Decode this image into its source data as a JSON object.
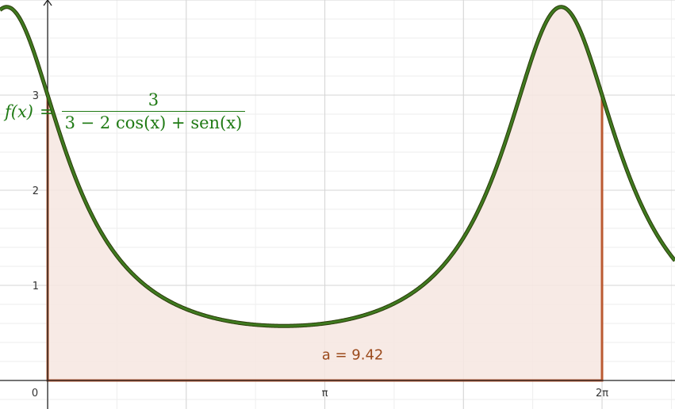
{
  "chart_data": {
    "type": "area",
    "title": "",
    "xlabel": "",
    "ylabel": "",
    "function": {
      "lhs": "f(x)",
      "numerator": "3",
      "denominator": "3 − 2 cos(x) + sen(x)"
    },
    "x_ticks": [
      {
        "value": 0,
        "label": "0"
      },
      {
        "value": 3.14159,
        "label": "π"
      },
      {
        "value": 6.28319,
        "label": "2π"
      }
    ],
    "y_ticks": [
      {
        "value": 1,
        "label": "1"
      },
      {
        "value": 2,
        "label": "2"
      },
      {
        "value": 3,
        "label": "3"
      }
    ],
    "xlim": [
      -0.54,
      7.11
    ],
    "ylim": [
      -0.3,
      4.0
    ],
    "shaded_interval": [
      0,
      6.28319
    ],
    "area_label": "a = 9.42",
    "series": [
      {
        "x": [
          -0.5,
          -0.25,
          0,
          0.25,
          0.5,
          0.75,
          1.0,
          1.25,
          1.5,
          1.75,
          2.0,
          2.25,
          2.5,
          2.75,
          3.0,
          3.25,
          3.5,
          3.75,
          4.0,
          4.25,
          4.5,
          4.75,
          5.0,
          5.25,
          5.5,
          5.75,
          6.0,
          6.28,
          6.5,
          6.75,
          7.0
        ],
        "y": [
          3.87,
          3.7,
          3.0,
          2.3,
          1.75,
          1.36,
          1.1,
          0.93,
          0.81,
          0.73,
          0.67,
          0.63,
          0.6,
          0.59,
          0.58,
          0.59,
          0.6,
          0.62,
          0.65,
          0.71,
          0.8,
          0.94,
          1.18,
          1.61,
          2.4,
          3.44,
          3.86,
          3.0,
          2.25,
          1.69,
          1.33
        ]
      }
    ],
    "colors": {
      "curve": "#3f7a1f",
      "curve_outline": "#2b3b0a",
      "region_fill": "#f6e6e1",
      "region_border": "#bb5a32",
      "grid_major": "#d4d4d4",
      "grid_minor": "#eeeeee",
      "axis": "#222222"
    },
    "grid": true
  }
}
